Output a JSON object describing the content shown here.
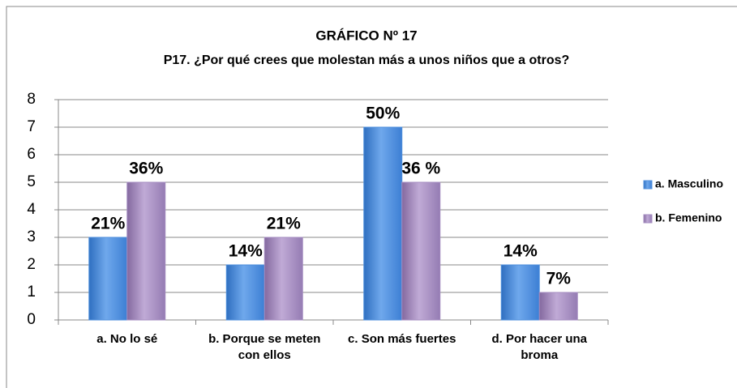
{
  "chart_data": {
    "type": "bar",
    "title": "GRÁFICO Nº 17",
    "subtitle": "P17. ¿Por qué crees que molestan más a unos niños que a otros?",
    "categories": [
      "a. No lo sé",
      "b. Porque se meten con ellos",
      "c. Son más fuertes",
      "d. Por hacer una broma"
    ],
    "series": [
      {
        "name": "a. Masculino",
        "color": "#4f8fdc",
        "values": [
          3,
          2,
          7,
          2
        ],
        "value_labels": [
          "21%",
          "14%",
          "50%",
          "14%"
        ]
      },
      {
        "name": "b. Femenino",
        "color": "#a48cc0",
        "values": [
          5,
          3,
          5,
          1
        ],
        "value_labels": [
          "36%",
          "21%",
          "36 %",
          "7%"
        ]
      }
    ],
    "ylim": [
      0,
      8
    ],
    "yticks": [
      0,
      1,
      2,
      3,
      4,
      5,
      6,
      7,
      8
    ],
    "grid": true,
    "legend": "right"
  }
}
